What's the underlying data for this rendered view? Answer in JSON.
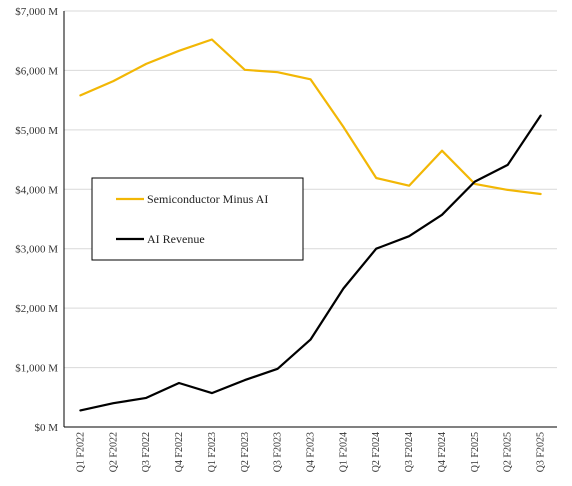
{
  "chart_data": {
    "type": "line",
    "title": "",
    "xlabel": "",
    "ylabel": "",
    "ylim": [
      0,
      7000
    ],
    "grid": true,
    "legend_position": "center-left",
    "categories": [
      "Q1 F2022",
      "Q2 F2022",
      "Q3 F2022",
      "Q4 F2022",
      "Q1 F2023",
      "Q2 F2023",
      "Q3 F2023",
      "Q4 F2023",
      "Q1 F2024",
      "Q2 F2024",
      "Q3 F2024",
      "Q4 F2024",
      "Q1 F2025",
      "Q2 F2025",
      "Q3 F2025"
    ],
    "y_ticks": [
      {
        "value": 0,
        "label": "$0 M"
      },
      {
        "value": 1000,
        "label": "$1,000 M"
      },
      {
        "value": 2000,
        "label": "$2,000 M"
      },
      {
        "value": 3000,
        "label": "$3,000 M"
      },
      {
        "value": 4000,
        "label": "$4,000 M"
      },
      {
        "value": 5000,
        "label": "$5,000 M"
      },
      {
        "value": 6000,
        "label": "$6,000 M"
      },
      {
        "value": 7000,
        "label": "$7,000 M"
      }
    ],
    "series": [
      {
        "name": "Semiconductor Minus AI",
        "color": "#F2B705",
        "values": [
          5580,
          5820,
          6110,
          6330,
          6520,
          6010,
          5970,
          5850,
          5050,
          4190,
          4060,
          4650,
          4090,
          3990,
          3920
        ]
      },
      {
        "name": "AI Revenue",
        "color": "#000000",
        "values": [
          280,
          400,
          490,
          740,
          570,
          790,
          980,
          1470,
          2330,
          3000,
          3210,
          3570,
          4130,
          4410,
          5240
        ]
      }
    ]
  }
}
